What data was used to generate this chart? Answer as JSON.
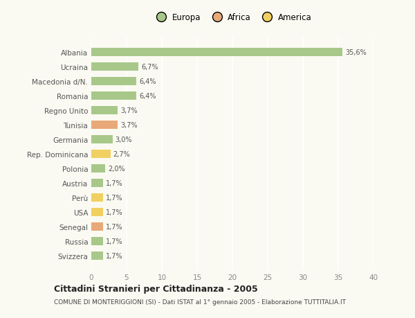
{
  "countries": [
    "Albania",
    "Ucraina",
    "Macedonia d/N.",
    "Romania",
    "Regno Unito",
    "Tunisia",
    "Germania",
    "Rep. Dominicana",
    "Polonia",
    "Austria",
    "Perù",
    "USA",
    "Senegal",
    "Russia",
    "Svizzera"
  ],
  "values": [
    35.6,
    6.7,
    6.4,
    6.4,
    3.7,
    3.7,
    3.0,
    2.7,
    2.0,
    1.7,
    1.7,
    1.7,
    1.7,
    1.7,
    1.7
  ],
  "labels": [
    "35,6%",
    "6,7%",
    "6,4%",
    "6,4%",
    "3,7%",
    "3,7%",
    "3,0%",
    "2,7%",
    "2,0%",
    "1,7%",
    "1,7%",
    "1,7%",
    "1,7%",
    "1,7%",
    "1,7%"
  ],
  "continent": [
    "Europa",
    "Europa",
    "Europa",
    "Europa",
    "Europa",
    "Africa",
    "Europa",
    "America",
    "Europa",
    "Europa",
    "America",
    "America",
    "Africa",
    "Europa",
    "Europa"
  ],
  "colors": {
    "Europa": "#a8c88a",
    "Africa": "#e8a878",
    "America": "#f0d060"
  },
  "title": "Cittadini Stranieri per Cittadinanza - 2005",
  "subtitle": "COMUNE DI MONTERIGGIONI (SI) - Dati ISTAT al 1° gennaio 2005 - Elaborazione TUTTITALIA.IT",
  "xlim": [
    0,
    40
  ],
  "xticks": [
    0,
    5,
    10,
    15,
    20,
    25,
    30,
    35,
    40
  ],
  "background_color": "#fafaf2",
  "grid_color": "#ffffff",
  "bar_height": 0.55,
  "legend_items": [
    "Europa",
    "Africa",
    "America"
  ]
}
